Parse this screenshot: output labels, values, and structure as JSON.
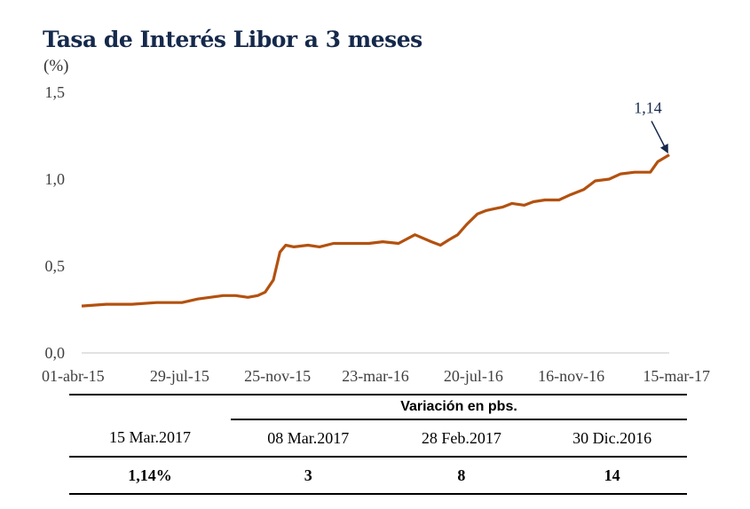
{
  "title": "Tasa de Interés Libor a 3 meses",
  "unit": "(%)",
  "colors": {
    "series": "#b3510f",
    "title": "#15294b",
    "axis": "#d9d9d9"
  },
  "chart_data": {
    "type": "line",
    "title": "Tasa de Interés Libor a 3 meses",
    "ylabel": "(%)",
    "xlabel": "",
    "ylim": [
      0,
      1.5
    ],
    "xlim": [
      "2015-04-01",
      "2017-03-15"
    ],
    "yticks": [
      "0,0",
      "0,5",
      "1,0",
      "1,5"
    ],
    "xticks": [
      "01-abr-15",
      "29-jul-15",
      "25-nov-15",
      "23-mar-16",
      "20-jul-16",
      "16-nov-16",
      "15-mar-17"
    ],
    "grid": false,
    "series": [
      {
        "x": [
          "2015-04-01",
          "2015-05-01",
          "2015-06-01",
          "2015-07-01",
          "2015-08-01",
          "2015-08-20",
          "2015-09-20",
          "2015-10-05",
          "2015-10-20",
          "2015-11-01",
          "2015-11-10",
          "2015-11-20",
          "2015-11-28",
          "2015-12-05",
          "2015-12-15",
          "2016-01-01",
          "2016-01-15",
          "2016-02-01",
          "2016-02-20",
          "2016-03-15",
          "2016-04-01",
          "2016-04-20",
          "2016-05-10",
          "2016-05-30",
          "2016-06-10",
          "2016-06-20",
          "2016-07-01",
          "2016-07-12",
          "2016-07-25",
          "2016-08-05",
          "2016-08-15",
          "2016-08-25",
          "2016-09-05",
          "2016-09-20",
          "2016-10-01",
          "2016-10-15",
          "2016-11-01",
          "2016-11-15",
          "2016-12-01",
          "2016-12-15",
          "2017-01-01",
          "2017-01-15",
          "2017-02-01",
          "2017-02-20",
          "2017-03-01",
          "2017-03-15"
        ],
        "y": [
          0.27,
          0.28,
          0.28,
          0.29,
          0.29,
          0.31,
          0.33,
          0.33,
          0.32,
          0.33,
          0.35,
          0.42,
          0.58,
          0.62,
          0.61,
          0.62,
          0.61,
          0.63,
          0.63,
          0.63,
          0.64,
          0.63,
          0.68,
          0.64,
          0.62,
          0.65,
          0.68,
          0.74,
          0.8,
          0.82,
          0.83,
          0.84,
          0.86,
          0.85,
          0.87,
          0.88,
          0.88,
          0.91,
          0.94,
          0.99,
          1.0,
          1.03,
          1.04,
          1.04,
          1.1,
          1.14
        ]
      }
    ],
    "annotations": [
      {
        "text": "1,14",
        "x": "2017-03-15",
        "y": 1.14
      }
    ]
  },
  "table": {
    "group_header": "Variación en pbs.",
    "columns": [
      "15 Mar.2017",
      "08 Mar.2017",
      "28 Feb.2017",
      "30 Dic.2016"
    ],
    "values": [
      "1,14%",
      "3",
      "8",
      "14"
    ]
  }
}
